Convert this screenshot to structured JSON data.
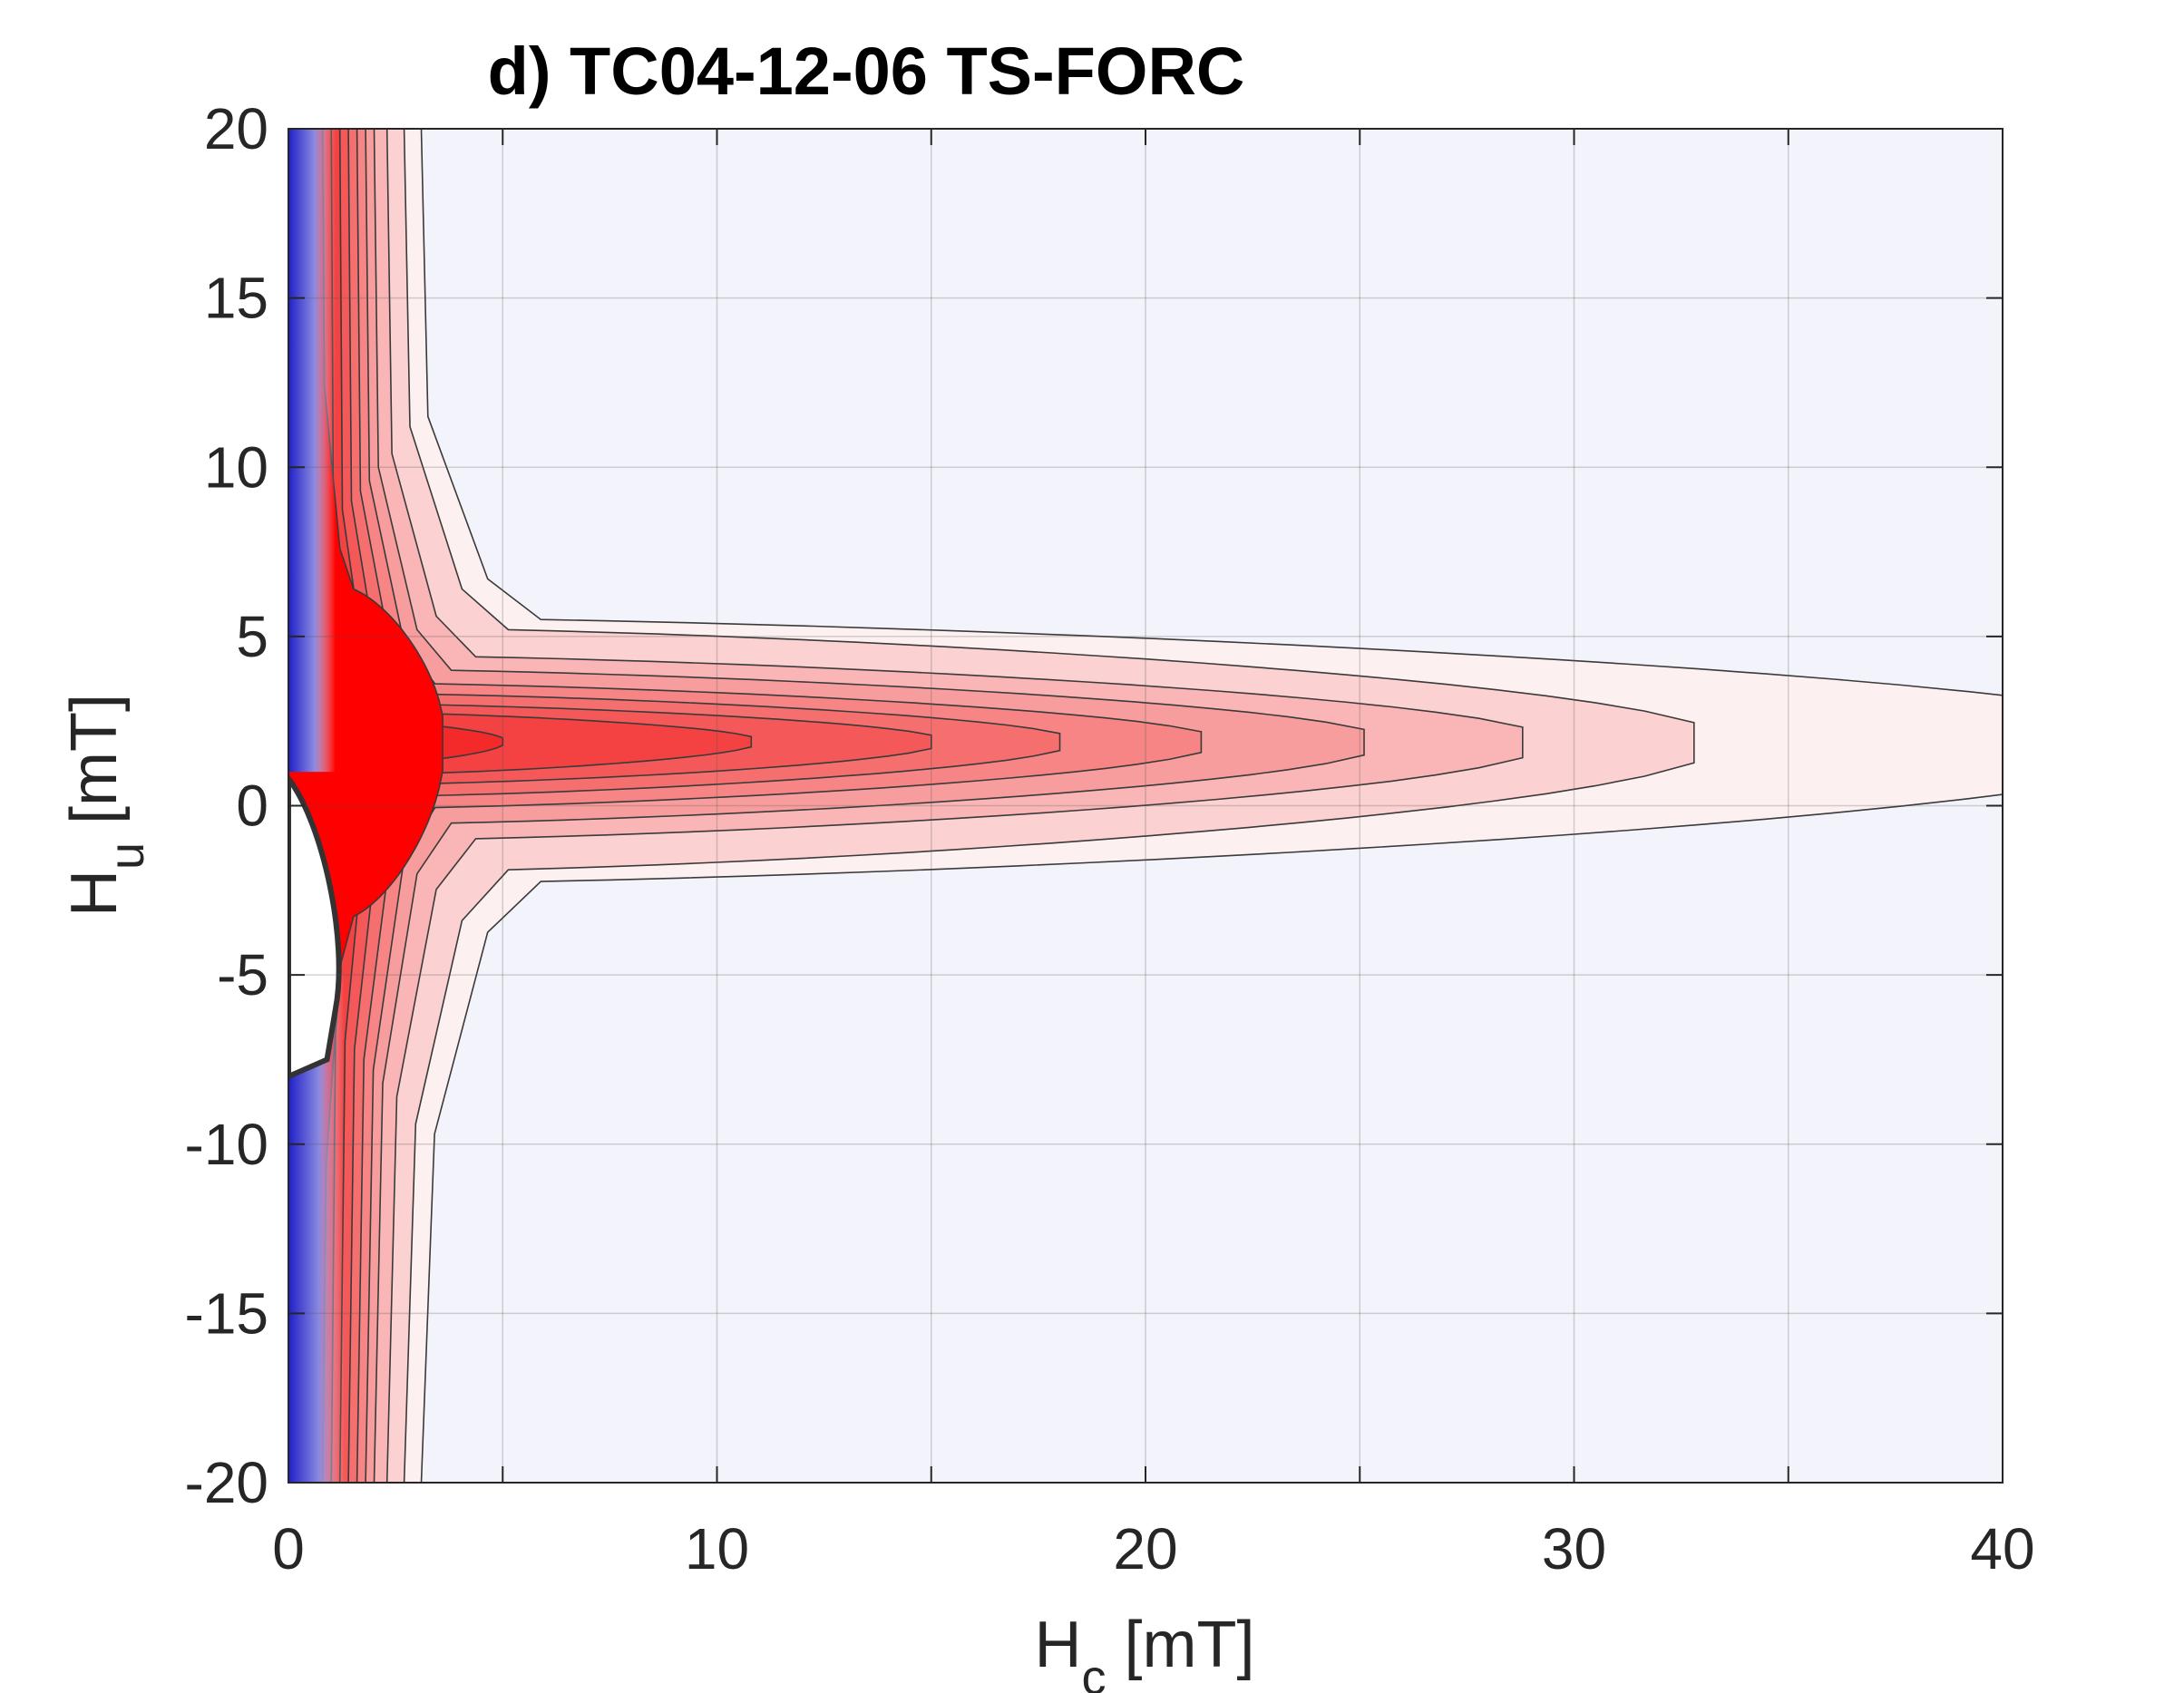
{
  "chart_data": {
    "type": "heatmap",
    "subtype": "filled-contour",
    "title": "d) TC04-12-06 TS-FORC",
    "xlabel": {
      "main": "H",
      "sub": "c",
      "unit": " [mT]"
    },
    "ylabel": {
      "main": "H",
      "sub": "u",
      "unit": " [mT]"
    },
    "xlim": [
      0,
      40
    ],
    "ylim": [
      -20,
      20
    ],
    "xticks": [
      "0",
      "10",
      "20",
      "30",
      "40"
    ],
    "yticks": [
      "20",
      "15",
      "10",
      "5",
      "0",
      "-5",
      "-10",
      "-15",
      "-20"
    ],
    "xtick_values": [
      0,
      10,
      20,
      30,
      40
    ],
    "ytick_values": [
      20,
      15,
      10,
      5,
      0,
      -5,
      -10,
      -15,
      -20
    ],
    "x_gridlines": [
      5,
      10,
      15,
      20,
      25,
      30,
      35
    ],
    "y_gridlines": [
      -15,
      -10,
      -5,
      0,
      5,
      10,
      15
    ],
    "grid": true,
    "colormap": {
      "negative": "#1f1fc8",
      "zero": "#f3f3fc",
      "positive": "#ff0000"
    },
    "ridge_center_hu": 1.9,
    "contours": [
      {
        "level": 1,
        "color": "#fdf0f0",
        "tip_hc": 44,
        "half_width_hu": 3.6,
        "vertical_band_hc": 3.1
      },
      {
        "level": 2,
        "color": "#fbd1d1",
        "tip_hc": 32.8,
        "half_width_hu": 3.3,
        "vertical_band_hc": 2.7
      },
      {
        "level": 3,
        "color": "#fab6b6",
        "tip_hc": 28.8,
        "half_width_hu": 2.5,
        "vertical_band_hc": 2.3
      },
      {
        "level": 4,
        "color": "#f89d9d",
        "tip_hc": 25.1,
        "half_width_hu": 2.1,
        "vertical_band_hc": 2.0
      },
      {
        "level": 5,
        "color": "#f78585",
        "tip_hc": 21.3,
        "half_width_hu": 1.7,
        "vertical_band_hc": 1.8
      },
      {
        "level": 6,
        "color": "#f66f6f",
        "tip_hc": 18.0,
        "half_width_hu": 1.4,
        "vertical_band_hc": 1.6
      },
      {
        "level": 7,
        "color": "#f55858",
        "tip_hc": 15.0,
        "half_width_hu": 1.1,
        "vertical_band_hc": 1.4
      },
      {
        "level": 8,
        "color": "#f44141",
        "tip_hc": 10.8,
        "half_width_hu": 0.85,
        "vertical_band_hc": 1.2
      },
      {
        "level": 9,
        "color": "#f42a2a",
        "tip_hc": 5.0,
        "half_width_hu": 0.6,
        "vertical_band_hc": 1.0
      },
      {
        "level": 10,
        "color": "#ff0000",
        "tip_hc": 3.6,
        "half_width_hu": 4.5,
        "vertical_band_hc": 0.8
      }
    ],
    "negative_edge": [
      {
        "hu_from": 1,
        "hu_to": 20,
        "extent_hc": 1.1
      },
      {
        "hu_from": -20,
        "hu_to": -5,
        "extent_hc": 1.3
      }
    ]
  }
}
